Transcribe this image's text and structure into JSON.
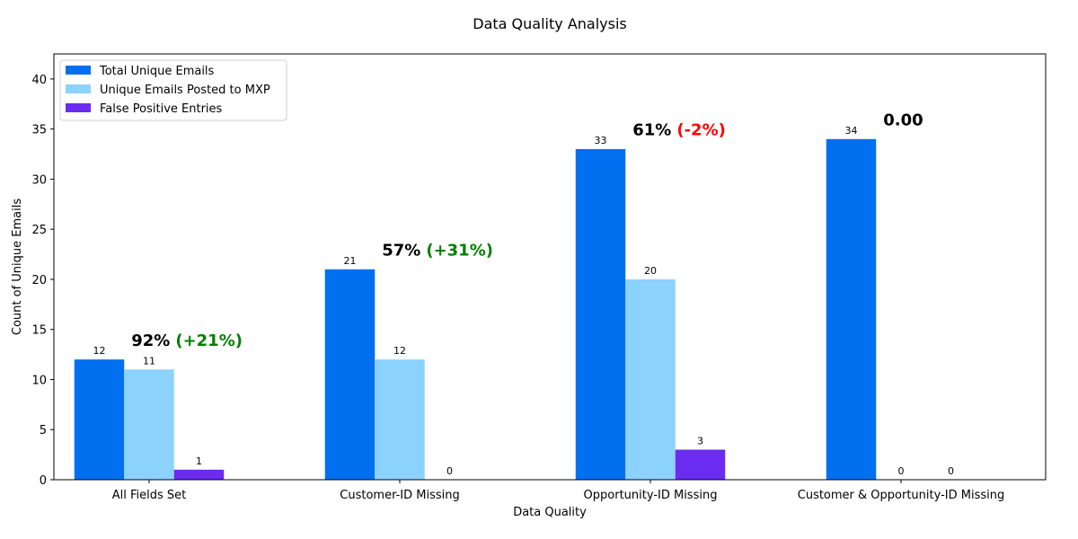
{
  "chart_data": {
    "type": "bar",
    "title": "Data Quality Analysis",
    "xlabel": "Data Quality",
    "ylabel": "Count of Unique Emails",
    "ylim": [
      0,
      42.5
    ],
    "yticks": [
      0,
      5,
      10,
      15,
      20,
      25,
      30,
      35,
      40
    ],
    "ytick_labels": [
      "0",
      "5",
      "10",
      "15",
      "20",
      "25",
      "30",
      "35",
      "40"
    ],
    "categories": [
      "All Fields Set",
      "Customer-ID Missing",
      "Opportunity-ID Missing",
      "Customer & Opportunity-ID Missing"
    ],
    "series": [
      {
        "name": "Total Unique Emails",
        "color": "#0070f0",
        "values": [
          12,
          21,
          33,
          34
        ],
        "labels": [
          "12",
          "21",
          "33",
          "34"
        ]
      },
      {
        "name": "Unique Emails Posted to MXP",
        "color": "#8cd2ff",
        "values": [
          11,
          12,
          20,
          0
        ],
        "labels": [
          "11",
          "12",
          "20",
          "0"
        ]
      },
      {
        "name": "False Positive Entries",
        "color": "#6a2cf0",
        "values": [
          1,
          0,
          3,
          0
        ],
        "labels": [
          "1",
          "0",
          "3",
          "0"
        ]
      }
    ],
    "annotations": [
      {
        "category_index": 0,
        "y": 14,
        "pct": "92%",
        "delta": "(+21%)",
        "delta_color": "#008000"
      },
      {
        "category_index": 1,
        "y": 23,
        "pct": "57%",
        "delta": "(+31%)",
        "delta_color": "#008000"
      },
      {
        "category_index": 2,
        "y": 35,
        "pct": "61%",
        "delta": "(-2%)",
        "delta_color": "#ff0000"
      },
      {
        "category_index": 3,
        "y": 36,
        "pct": "0.00",
        "delta": "",
        "delta_color": "#000000"
      }
    ],
    "legend": {
      "position": "top-left"
    },
    "grid": false
  }
}
